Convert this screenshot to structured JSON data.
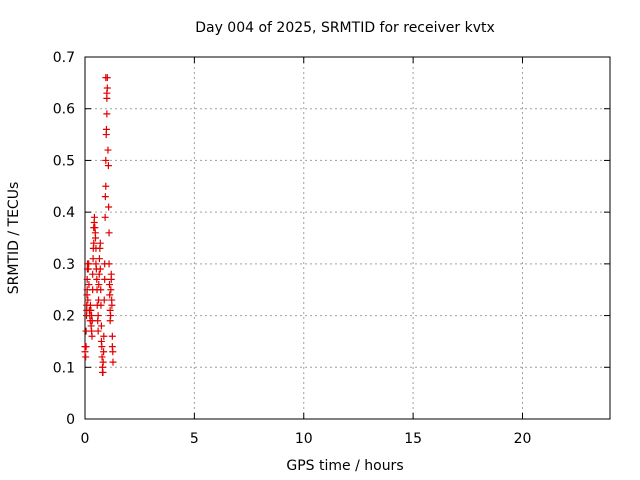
{
  "chart_data": {
    "type": "scatter",
    "title": "Day 004 of 2025, SRMTID for receiver kvtx",
    "xlabel": "GPS time / hours",
    "ylabel": "SRMTID / TECUs",
    "xlim": [
      0,
      24
    ],
    "ylim": [
      0,
      0.7
    ],
    "xticks": [
      0,
      5,
      10,
      15,
      20
    ],
    "xtick_labels": [
      "0",
      "5",
      "10",
      "15",
      "20"
    ],
    "yticks": [
      0,
      0.1,
      0.2,
      0.3,
      0.4,
      0.5,
      0.6,
      0.7
    ],
    "ytick_labels": [
      "0",
      "0.1",
      "0.2",
      "0.3",
      "0.4",
      "0.5",
      "0.6",
      "0.7"
    ],
    "grid": true,
    "marker": "+",
    "marker_color": "#e00000",
    "series": [
      {
        "name": "kvtx",
        "points": [
          [
            0.0,
            0.14
          ],
          [
            0.0,
            0.13
          ],
          [
            0.03,
            0.12
          ],
          [
            0.05,
            0.14
          ],
          [
            0.05,
            0.17
          ],
          [
            0.07,
            0.2
          ],
          [
            0.08,
            0.21
          ],
          [
            0.08,
            0.22
          ],
          [
            0.09,
            0.24
          ],
          [
            0.1,
            0.25
          ],
          [
            0.1,
            0.27
          ],
          [
            0.11,
            0.29
          ],
          [
            0.12,
            0.3
          ],
          [
            0.13,
            0.23
          ],
          [
            0.15,
            0.29
          ],
          [
            0.17,
            0.3
          ],
          [
            0.18,
            0.26
          ],
          [
            0.2,
            0.21
          ],
          [
            0.22,
            0.2
          ],
          [
            0.24,
            0.19
          ],
          [
            0.25,
            0.22
          ],
          [
            0.27,
            0.21
          ],
          [
            0.28,
            0.18
          ],
          [
            0.3,
            0.17
          ],
          [
            0.3,
            0.2
          ],
          [
            0.32,
            0.16
          ],
          [
            0.33,
            0.19
          ],
          [
            0.35,
            0.25
          ],
          [
            0.35,
            0.28
          ],
          [
            0.37,
            0.31
          ],
          [
            0.38,
            0.33
          ],
          [
            0.4,
            0.34
          ],
          [
            0.4,
            0.37
          ],
          [
            0.42,
            0.38
          ],
          [
            0.43,
            0.39
          ],
          [
            0.45,
            0.37
          ],
          [
            0.47,
            0.36
          ],
          [
            0.48,
            0.35
          ],
          [
            0.5,
            0.33
          ],
          [
            0.5,
            0.3
          ],
          [
            0.52,
            0.29
          ],
          [
            0.54,
            0.27
          ],
          [
            0.55,
            0.25
          ],
          [
            0.56,
            0.22
          ],
          [
            0.58,
            0.19
          ],
          [
            0.6,
            0.17
          ],
          [
            0.6,
            0.2
          ],
          [
            0.62,
            0.23
          ],
          [
            0.63,
            0.26
          ],
          [
            0.65,
            0.28
          ],
          [
            0.66,
            0.31
          ],
          [
            0.68,
            0.33
          ],
          [
            0.7,
            0.34
          ],
          [
            0.7,
            0.29
          ],
          [
            0.72,
            0.25
          ],
          [
            0.73,
            0.22
          ],
          [
            0.75,
            0.18
          ],
          [
            0.75,
            0.15
          ],
          [
            0.77,
            0.14
          ],
          [
            0.78,
            0.12
          ],
          [
            0.8,
            0.1
          ],
          [
            0.8,
            0.09
          ],
          [
            0.82,
            0.09
          ],
          [
            0.83,
            0.11
          ],
          [
            0.85,
            0.13
          ],
          [
            0.86,
            0.16
          ],
          [
            0.88,
            0.23
          ],
          [
            0.9,
            0.27
          ],
          [
            0.9,
            0.3
          ],
          [
            0.92,
            0.39
          ],
          [
            0.93,
            0.43
          ],
          [
            0.95,
            0.45
          ],
          [
            0.95,
            0.5
          ],
          [
            0.97,
            0.55
          ],
          [
            0.98,
            0.56
          ],
          [
            1.0,
            0.59
          ],
          [
            1.0,
            0.62
          ],
          [
            1.0,
            0.63
          ],
          [
            1.02,
            0.64
          ],
          [
            1.02,
            0.66
          ],
          [
            0.95,
            0.66
          ],
          [
            1.05,
            0.52
          ],
          [
            1.07,
            0.49
          ],
          [
            1.08,
            0.41
          ],
          [
            1.1,
            0.36
          ],
          [
            1.1,
            0.3
          ],
          [
            1.12,
            0.26
          ],
          [
            1.13,
            0.24
          ],
          [
            1.15,
            0.21
          ],
          [
            1.15,
            0.19
          ],
          [
            1.17,
            0.2
          ],
          [
            1.18,
            0.25
          ],
          [
            1.2,
            0.27
          ],
          [
            1.2,
            0.28
          ],
          [
            1.22,
            0.23
          ],
          [
            1.23,
            0.22
          ],
          [
            1.25,
            0.16
          ],
          [
            1.25,
            0.14
          ],
          [
            1.27,
            0.13
          ],
          [
            1.28,
            0.11
          ]
        ]
      }
    ]
  }
}
